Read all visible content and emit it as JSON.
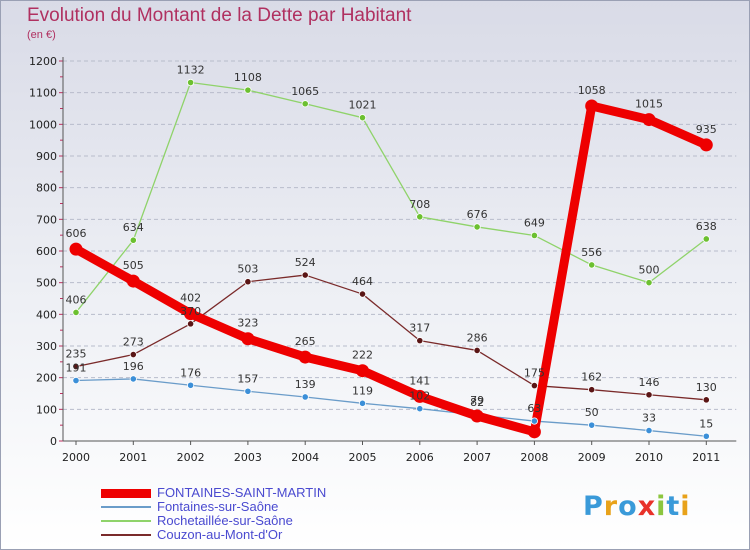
{
  "title": "Evolution du Montant de la Dette par Habitant",
  "unit": "(en €)",
  "logo": {
    "text": "Proxiti",
    "colors": [
      "#3a9ad9",
      "#e8a21a",
      "#3a9ad9",
      "#e8312a",
      "#8cc63f",
      "#3a9ad9",
      "#e8a21a"
    ]
  },
  "chart_data": {
    "type": "line",
    "x": [
      "2000",
      "2001",
      "2002",
      "2003",
      "2004",
      "2005",
      "2006",
      "2007",
      "2008",
      "2009",
      "2010",
      "2011"
    ],
    "ylim": [
      0,
      1200
    ],
    "yticks": [
      0,
      100,
      200,
      300,
      400,
      500,
      600,
      700,
      800,
      900,
      1000,
      1100,
      1200
    ],
    "grid": "horizontal dashed",
    "legend_position": "bottom-left",
    "series": [
      {
        "name": "FONTAINES-SAINT-MARTIN",
        "color": "#ee0000",
        "point_color": "#ee0000",
        "emphasis": "thick",
        "values": [
          606,
          505,
          402,
          323,
          265,
          222,
          141,
          79,
          29,
          1058,
          1015,
          935
        ],
        "labels": [
          "606",
          "505",
          "402",
          "323",
          "265",
          "222",
          "141",
          "79",
          "",
          "1058",
          "1015",
          "935"
        ]
      },
      {
        "name": "Fontaines-sur-Saône",
        "color": "#6a9cc9",
        "point_color": "#3b8fd8",
        "emphasis": "thin",
        "values": [
          191,
          196,
          176,
          157,
          139,
          119,
          102,
          82,
          63,
          50,
          33,
          15
        ],
        "labels": [
          "191",
          "196",
          "176",
          "157",
          "139",
          "119",
          "102",
          "82",
          "63",
          "50",
          "33",
          "15"
        ]
      },
      {
        "name": "Rochetaillée-sur-Saône",
        "color": "#8fd36a",
        "point_color": "#6cc030",
        "emphasis": "thin",
        "values": [
          406,
          634,
          1132,
          1108,
          1065,
          1021,
          708,
          676,
          649,
          556,
          500,
          638
        ],
        "labels": [
          "406",
          "634",
          "1132",
          "1108",
          "1065",
          "1021",
          "708",
          "676",
          "649",
          "556",
          "500",
          "638"
        ]
      },
      {
        "name": "Couzon-au-Mont-d'Or",
        "color": "#7a2a2a",
        "point_color": "#5a1515",
        "emphasis": "thin",
        "values": [
          235,
          273,
          370,
          503,
          524,
          464,
          317,
          286,
          175,
          162,
          146,
          130
        ],
        "labels": [
          "235",
          "273",
          "370",
          "503",
          "524",
          "464",
          "317",
          "286",
          "175",
          "162",
          "146",
          "130"
        ]
      }
    ]
  }
}
